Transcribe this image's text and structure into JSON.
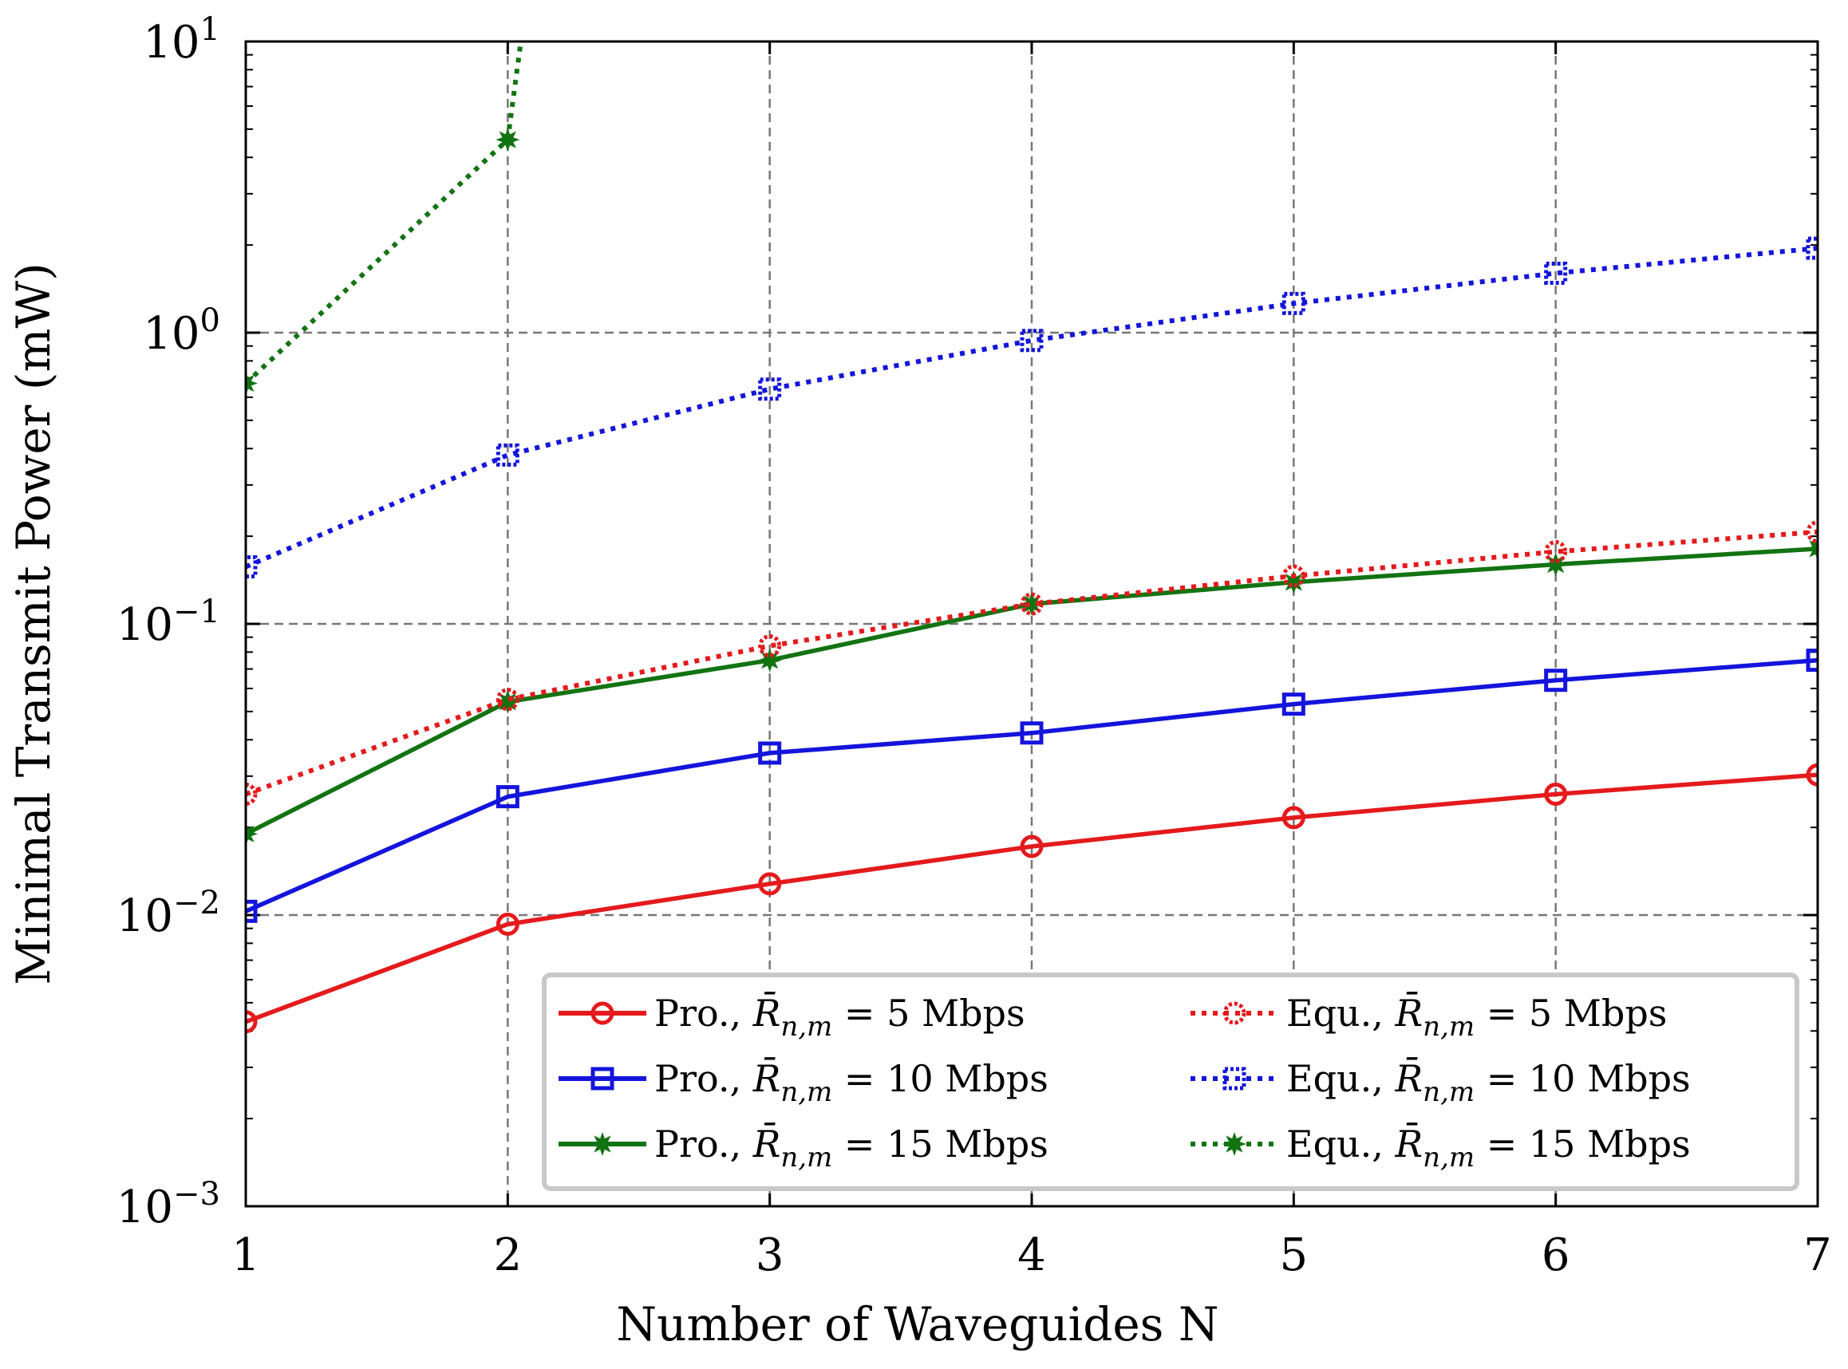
{
  "chart_data": {
    "type": "line",
    "xlabel": "Number of Waveguides N",
    "ylabel": "Minimal Transmit Power (mW)",
    "yscale": "log",
    "xlim": [
      1,
      7
    ],
    "ylim": [
      0.001,
      10
    ],
    "grid": true,
    "legend_position": "lower-right",
    "x_ticks": [
      "1",
      "2",
      "3",
      "4",
      "5",
      "6",
      "7"
    ],
    "y_ticks": [
      {
        "value": 0.001,
        "base": "10",
        "exp": "−3"
      },
      {
        "value": 0.01,
        "base": "10",
        "exp": "−2"
      },
      {
        "value": 0.1,
        "base": "10",
        "exp": "−1"
      },
      {
        "value": 1,
        "base": "10",
        "exp": "0"
      },
      {
        "value": 10,
        "base": "10",
        "exp": "1"
      }
    ],
    "x": [
      1,
      2,
      3,
      4,
      5,
      6,
      7
    ],
    "series": [
      {
        "name": "Pro., R̄n,m = 5 Mbps",
        "legend_prefix": "Pro., ",
        "legend_suffix": " = 5 Mbps",
        "color": "#e41a1c",
        "dash": "solid",
        "marker": "circle",
        "values": [
          0.0043,
          0.0093,
          0.0128,
          0.0172,
          0.0216,
          0.026,
          0.0303
        ]
      },
      {
        "name": "Pro., R̄n,m = 10 Mbps",
        "legend_prefix": "Pro., ",
        "legend_suffix": " = 10 Mbps",
        "color": "#1414dc",
        "dash": "solid",
        "marker": "square",
        "values": [
          0.0103,
          0.0255,
          0.036,
          0.0422,
          0.053,
          0.064,
          0.075
        ]
      },
      {
        "name": "Pro., R̄n,m = 15 Mbps",
        "legend_prefix": "Pro., ",
        "legend_suffix": " = 15 Mbps",
        "color": "#127312",
        "dash": "solid",
        "marker": "star",
        "values": [
          0.019,
          0.054,
          0.075,
          0.117,
          0.139,
          0.16,
          0.181
        ]
      },
      {
        "name": "Equ., R̄n,m = 5 Mbps",
        "legend_prefix": "Equ., ",
        "legend_suffix": " = 5 Mbps",
        "color": "#e41a1c",
        "dash": "dotted",
        "marker": "circle",
        "values": [
          0.026,
          0.055,
          0.084,
          0.117,
          0.146,
          0.177,
          0.207
        ]
      },
      {
        "name": "Equ., R̄n,m = 10 Mbps",
        "legend_prefix": "Equ., ",
        "legend_suffix": " = 10 Mbps",
        "color": "#1414dc",
        "dash": "dotted",
        "marker": "square",
        "values": [
          0.157,
          0.38,
          0.64,
          0.94,
          1.26,
          1.6,
          1.95
        ]
      },
      {
        "name": "Equ., R̄n,m = 15 Mbps",
        "legend_prefix": "Equ., ",
        "legend_suffix": " = 15 Mbps",
        "color": "#127312",
        "dash": "dotted",
        "marker": "star",
        "x": [
          1,
          2,
          2.05
        ],
        "values": [
          0.67,
          4.6,
          10
        ]
      }
    ]
  }
}
